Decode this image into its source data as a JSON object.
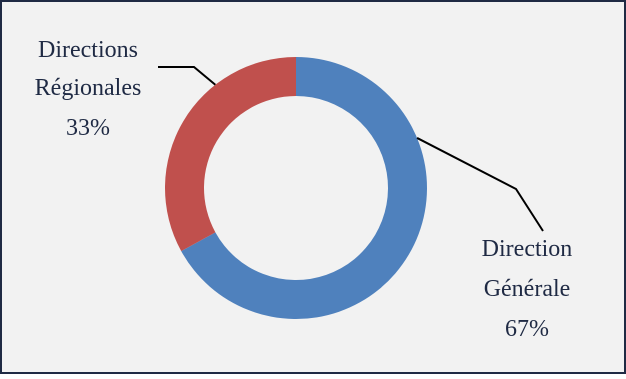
{
  "chart_data": {
    "type": "pie",
    "donut": true,
    "title": "",
    "legend": "none",
    "slices": [
      {
        "label_lines": [
          "Direction",
          "Générale"
        ],
        "value_label": "67%",
        "value": 67,
        "color": "#4F81BD"
      },
      {
        "label_lines": [
          "Directions",
          "Régionales"
        ],
        "value_label": "33%",
        "value": 33,
        "color": "#C0504D"
      }
    ],
    "colors": {
      "background": "#F2F2F2",
      "border": "#1F2A44",
      "label_text": "#1F2A44",
      "leader_line": "#000000"
    }
  }
}
